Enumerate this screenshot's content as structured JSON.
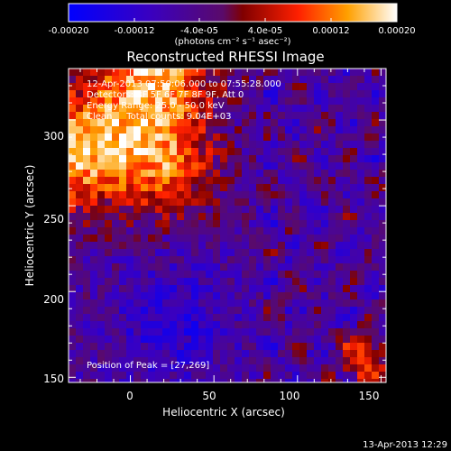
{
  "colorbar": {
    "ticks": [
      "-0.00020",
      "-0.00012",
      "-4.0e-05",
      "4.0e-05",
      "0.00012",
      "0.00020"
    ],
    "unit": "(photons cm⁻² s⁻¹ asec⁻²)",
    "range": [
      -0.0002,
      0.0002
    ],
    "palette": "blue-purple-red-orange-yellow-white"
  },
  "chart_data": {
    "type": "heatmap",
    "title": "Reconstructed RHESSI Image",
    "xlabel": "Heliocentric X (arcsec)",
    "ylabel": "Heliocentric Y (arcsec)",
    "xlim": [
      -37,
      153
    ],
    "ylim": [
      147,
      330
    ],
    "x_ticks": [
      "0",
      "50",
      "100",
      "150"
    ],
    "y_ticks": [
      "150",
      "200",
      "250",
      "300"
    ],
    "annotations": [
      "12-Apr-2013 07:50:06.000 to 07:55:28.000",
      "Detectors: 3F 5F 6F 7F 8F 9F, Att 0",
      "Energy Range: 25.0 - 50.0 keV",
      "Clean     Total counts: 9.04E+03"
    ],
    "peak_label": "Position of Peak = [27,269]",
    "peak": [
      27,
      269
    ]
  },
  "footer": {
    "timestamp": "13-Apr-2013 12:29"
  }
}
